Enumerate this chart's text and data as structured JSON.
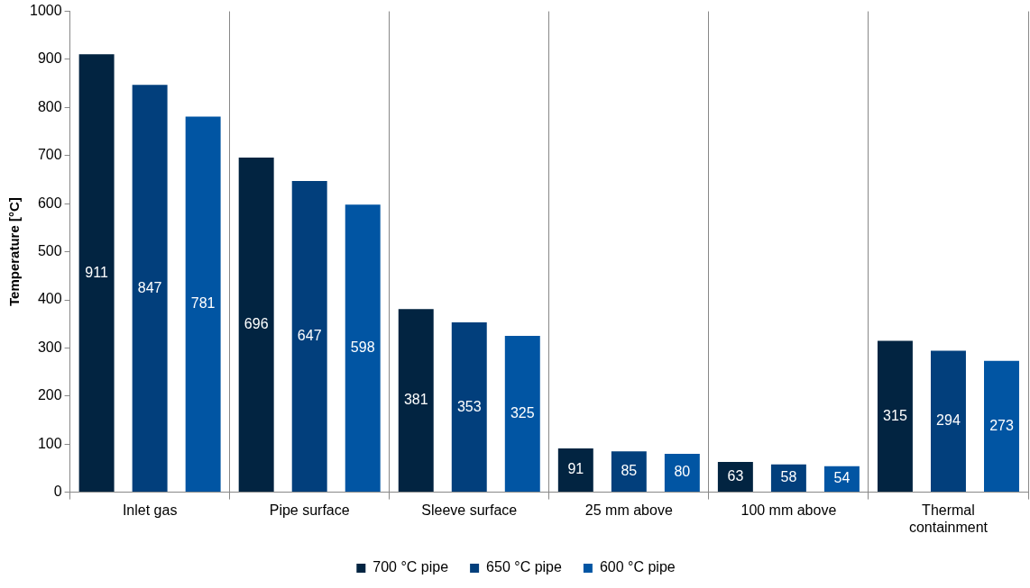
{
  "chart_data": {
    "type": "bar",
    "ylabel": "Temperature [°C]",
    "categories": [
      "Inlet gas",
      "Pipe surface",
      "Sleeve surface",
      "25 mm above",
      "100 mm above",
      "Thermal containment"
    ],
    "series": [
      {
        "name": "700 °C pipe",
        "color": "#022441",
        "values": [
          911,
          696,
          381,
          91,
          63,
          315
        ]
      },
      {
        "name": "650 °C pipe",
        "color": "#023f7c",
        "values": [
          847,
          647,
          353,
          85,
          58,
          294
        ]
      },
      {
        "name": "600 °C pipe",
        "color": "#0155a3",
        "values": [
          781,
          598,
          325,
          80,
          54,
          273
        ]
      }
    ],
    "ylim": [
      0,
      1000
    ],
    "yticks": [
      0,
      100,
      200,
      300,
      400,
      500,
      600,
      700,
      800,
      900,
      1000
    ],
    "grid": "x",
    "legend": "bottom",
    "data_labels": true
  }
}
